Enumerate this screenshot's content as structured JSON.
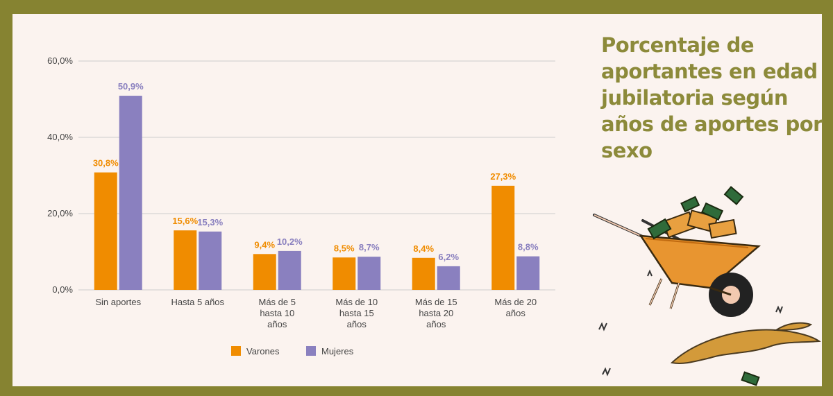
{
  "title": "Porcentaje de aportantes en edad jubilatoria según años de aportes por sexo",
  "colors": {
    "background": "#868331",
    "panel": "#fbf3ef",
    "title": "#8c8a3a",
    "varones": "#f08c00",
    "mujeres": "#8a80bf",
    "grid": "#cccccc",
    "text": "#444444"
  },
  "chart_data": {
    "type": "bar",
    "categories": [
      [
        "Sin aportes"
      ],
      [
        "Hasta 5 años"
      ],
      [
        "Más de 5",
        "hasta 10",
        "años"
      ],
      [
        "Más de 10",
        "hasta 15",
        "años"
      ],
      [
        "Más de 15",
        "hasta 20",
        "años"
      ],
      [
        "Más de 20",
        "años"
      ]
    ],
    "series": [
      {
        "name": "Varones",
        "color": "#f08c00",
        "values": [
          30.8,
          15.6,
          9.4,
          8.5,
          8.4,
          27.3
        ],
        "labels": [
          "30,8%",
          "15,6%",
          "9,4%",
          "8,5%",
          "8,4%",
          "27,3%"
        ]
      },
      {
        "name": "Mujeres",
        "color": "#8a80bf",
        "values": [
          50.9,
          15.3,
          10.2,
          8.7,
          6.2,
          8.8
        ],
        "labels": [
          "50,9%",
          "15,3%",
          "10,2%",
          "8,7%",
          "6,2%",
          "8,8%"
        ]
      }
    ],
    "yticks": [
      0,
      20,
      40,
      60
    ],
    "ytick_labels": [
      "0,0%",
      "20,0%",
      "40,0%",
      "60,0%"
    ],
    "ylim": [
      0,
      60
    ],
    "grid": true,
    "legend": "bottom",
    "xlabel": "",
    "ylabel": ""
  }
}
